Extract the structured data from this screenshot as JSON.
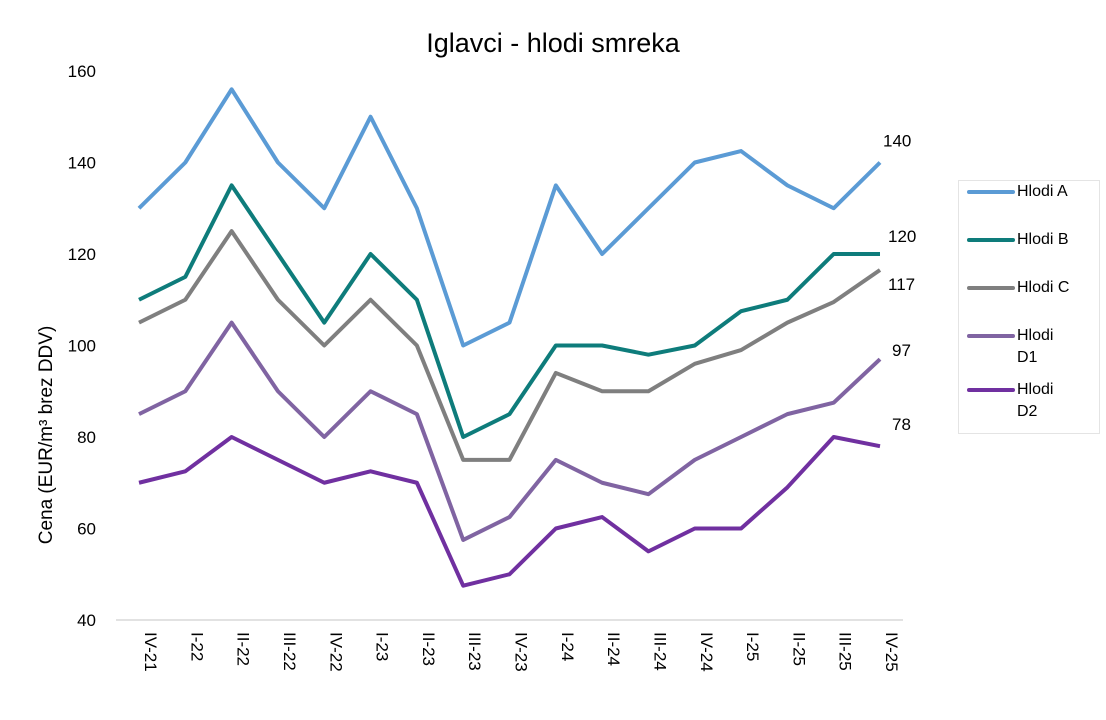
{
  "chart_data": {
    "type": "line",
    "title": "Iglavci - hlodi smreka",
    "xlabel": "",
    "ylabel": "Cena (EUR/m³ brez DDV)",
    "ylim": [
      40,
      160
    ],
    "yticks": [
      "40",
      "60",
      "80",
      "100",
      "120",
      "140",
      "160"
    ],
    "grid": false,
    "legend": "right",
    "categories": [
      "IV-21",
      "I-22",
      "II-22",
      "III-22",
      "IV-22",
      "I-23",
      "II-23",
      "III-23",
      "IV-23",
      "I-24",
      "II-24",
      "III-24",
      "IV-24",
      "I-25",
      "II-25",
      "III-25",
      "IV-25"
    ],
    "series": [
      {
        "name": "Hlodi A",
        "color": "#5b9bd5",
        "values": [
          130,
          140,
          156,
          140,
          130,
          150,
          130,
          100,
          105,
          135,
          120,
          130,
          140,
          142.5,
          135,
          130,
          140
        ],
        "end_label": "140"
      },
      {
        "name": "Hlodi B",
        "color": "#0e7c7b",
        "values": [
          110,
          115,
          135,
          120,
          105,
          120,
          110,
          80,
          85,
          100,
          100,
          98,
          100,
          107.5,
          110,
          120,
          120
        ],
        "end_label": "120"
      },
      {
        "name": "Hlodi C",
        "color": "#7f7f7f",
        "values": [
          105,
          110,
          125,
          110,
          100,
          110,
          100,
          75,
          75,
          94,
          90,
          90,
          96,
          99,
          105,
          109.5,
          116.5
        ],
        "end_label": "117"
      },
      {
        "name": "Hlodi D1",
        "color": "#8064a2",
        "values": [
          85,
          90,
          105,
          90,
          80,
          90,
          85,
          57.5,
          62.5,
          75,
          70,
          67.5,
          75,
          80,
          85,
          87.5,
          97
        ],
        "end_label": "97"
      },
      {
        "name": "Hlodi D2",
        "color": "#7030a0",
        "values": [
          70,
          72.5,
          80,
          75,
          70,
          72.5,
          70,
          47.5,
          50,
          60,
          62.5,
          55,
          60,
          60,
          69,
          80,
          78
        ],
        "end_label": "78"
      }
    ]
  }
}
